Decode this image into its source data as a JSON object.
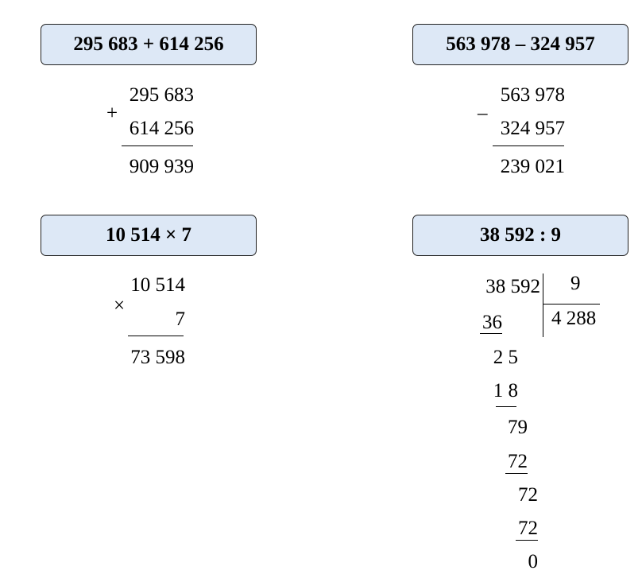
{
  "problems": {
    "addition": {
      "title": "295 683 + 614 256",
      "operand1": "295 683",
      "sign": "+",
      "operand2": "614 256",
      "result": "909 939"
    },
    "subtraction": {
      "title": "563 978 – 324 957",
      "operand1": "563 978",
      "sign": "–",
      "operand2": "324 957",
      "result": "239 021"
    },
    "multiplication": {
      "title": "10 514 × 7",
      "operand1": "10 514",
      "sign": "×",
      "operand2": "7",
      "result": "73 598"
    },
    "division": {
      "title": "38 592 : 9",
      "dividend": "38 592",
      "divisor": "9",
      "quotient": "4 288",
      "steps": [
        "36",
        "2 5",
        "1 8",
        "79",
        "72",
        "72",
        "72",
        "0"
      ]
    }
  }
}
